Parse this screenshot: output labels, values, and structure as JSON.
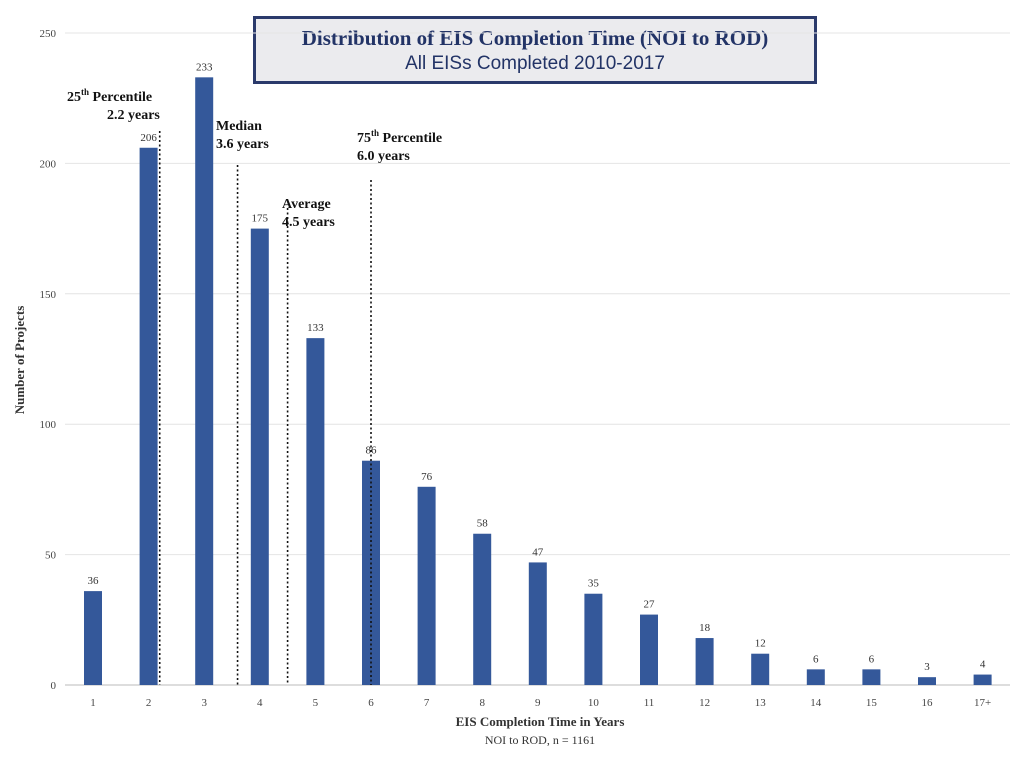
{
  "chart_data": {
    "type": "bar",
    "title": "Distribution of EIS Completion Time (NOI to ROD)",
    "subtitle": "All EISs Completed 2010-2017",
    "xlabel": "EIS Completion Time in Years",
    "xlabel_sub": "NOI to ROD, n = 1161",
    "ylabel": "Number of Projects",
    "categories": [
      "1",
      "2",
      "3",
      "4",
      "5",
      "6",
      "7",
      "8",
      "9",
      "10",
      "11",
      "12",
      "13",
      "14",
      "15",
      "16",
      "17+"
    ],
    "values": [
      36,
      206,
      233,
      175,
      133,
      86,
      76,
      58,
      47,
      35,
      27,
      18,
      12,
      6,
      6,
      3,
      4
    ],
    "ylim": [
      0,
      250
    ],
    "yticks": [
      0,
      50,
      100,
      150,
      200,
      250
    ],
    "grid": true,
    "bar_color": "#34589a",
    "annotations": [
      {
        "label_main": "25",
        "label_sup": "th",
        "label_rest": " Percentile",
        "line2": "2.2 years",
        "x": 2.2
      },
      {
        "label_main": "Median",
        "label_sup": "",
        "label_rest": "",
        "line2": "3.6 years",
        "x": 3.6
      },
      {
        "label_main": "Average",
        "label_sup": "",
        "label_rest": "",
        "line2": "4.5 years",
        "x": 4.5
      },
      {
        "label_main": "75",
        "label_sup": "th",
        "label_rest": " Percentile",
        "line2": "6.0 years",
        "x": 6.0
      }
    ]
  }
}
